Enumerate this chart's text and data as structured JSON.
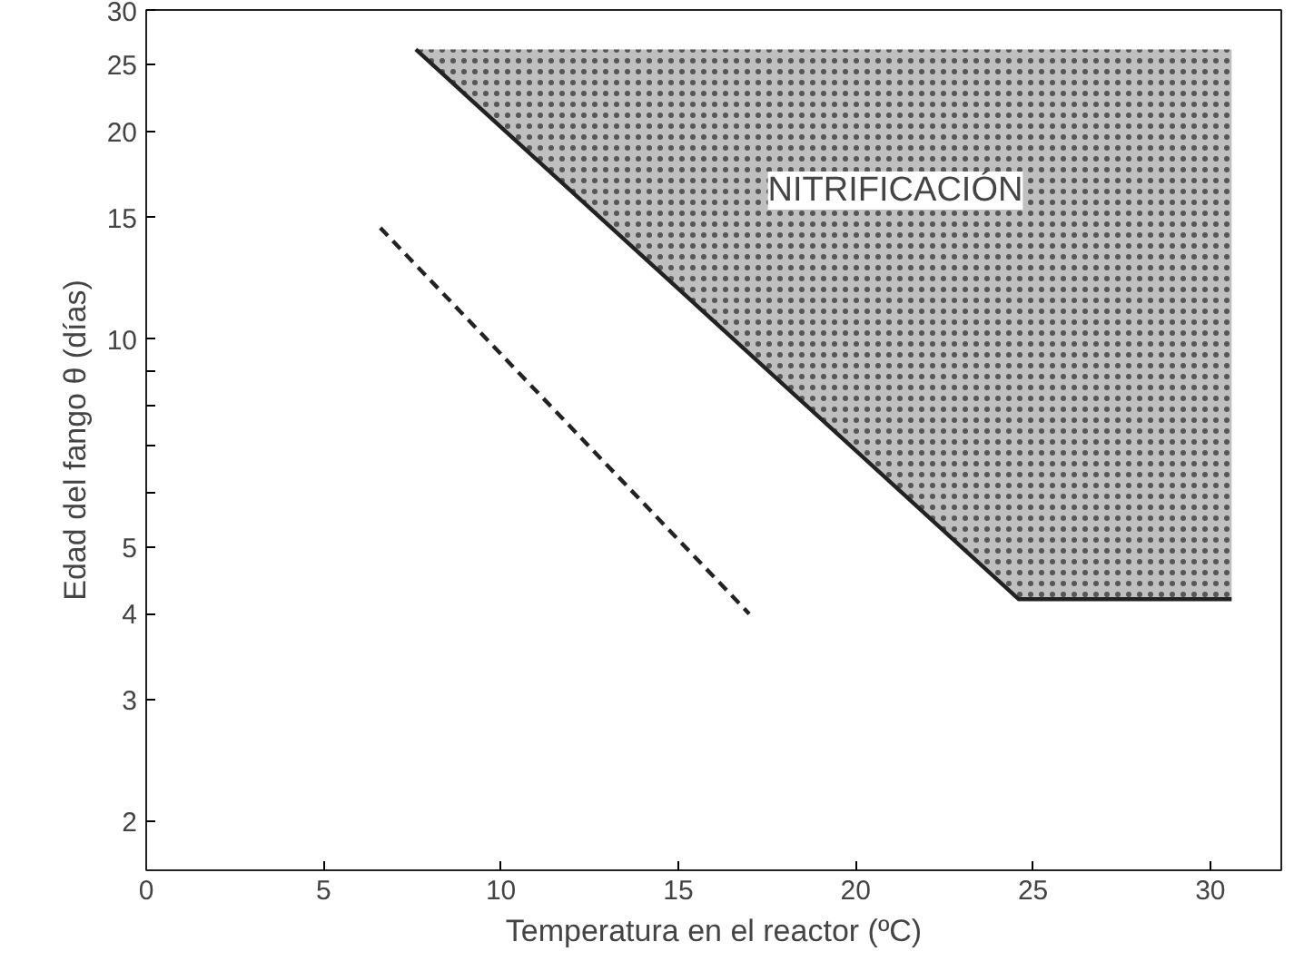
{
  "chart_data": {
    "type": "line",
    "xlabel": "Temperatura en el reactor (ºC)",
    "ylabel": "Edad del fango θ (días)",
    "log": "y",
    "grid": false,
    "xlim": [
      0,
      32
    ],
    "ylim": [
      1.7,
      30
    ],
    "xticks": [
      0,
      5,
      10,
      15,
      20,
      25,
      30
    ],
    "yticks": [
      2,
      3,
      4,
      5,
      {
        "value": 6,
        "label": null
      },
      {
        "value": 7,
        "label": null
      },
      {
        "value": 8,
        "label": null
      },
      {
        "value": 9,
        "label": null
      },
      10,
      15,
      20,
      25,
      30
    ],
    "series": [
      {
        "color": "#222222",
        "line_style": "solid",
        "x": [
          7.6,
          24.6,
          30.6
        ],
        "values": [
          26.3,
          4.2,
          4.2
        ],
        "lower": [
          26.3,
          4.2,
          4.2
        ],
        "upper": [
          26.3,
          26.3,
          26.3
        ]
      },
      {
        "color": "#222222",
        "line_style": "dashed",
        "x": [
          6.6,
          17.0
        ],
        "values": [
          14.5,
          4.0
        ]
      }
    ],
    "annotations": [
      "NITRIFICACIÓN"
    ]
  }
}
